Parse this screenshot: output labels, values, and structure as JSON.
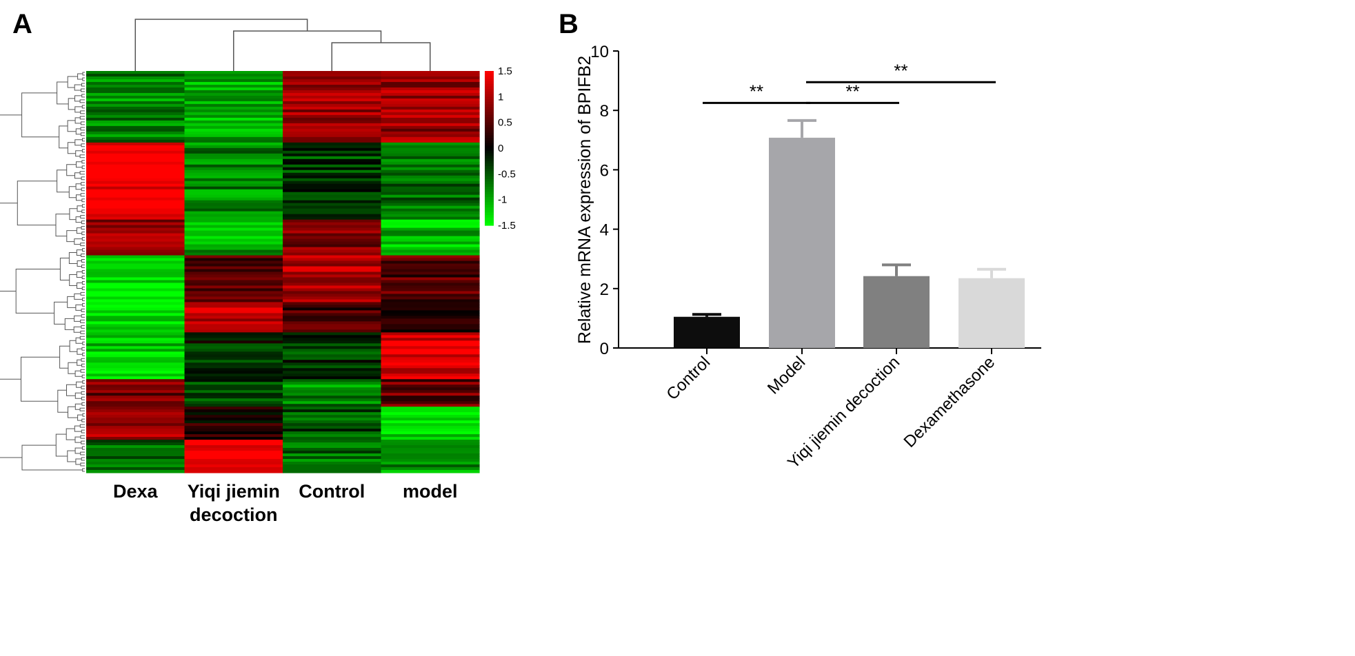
{
  "panels": {
    "a_label": "A",
    "b_label": "B"
  },
  "chart_data": [
    {
      "type": "heatmap",
      "panel": "A",
      "columns": [
        "Dexa",
        "Yiqi jiemin decoction",
        "Control",
        "model"
      ],
      "column_label_lines": [
        [
          "Dexa"
        ],
        [
          "Yiqi jiemin",
          "decoction"
        ],
        [
          "Control"
        ],
        [
          "model"
        ]
      ],
      "colorscale": {
        "min": -1.5,
        "max": 1.5,
        "low_color": "#00ff00",
        "mid_color": "#000000",
        "high_color": "#ff0000"
      },
      "colorbar_ticks": [
        "1.5",
        "1",
        "0.5",
        "0",
        "-0.5",
        "-1",
        "-1.5"
      ],
      "clusters": [
        {
          "rows": 26,
          "values": [
            -0.8,
            -1.0,
            0.9,
            0.9
          ]
        },
        {
          "rows": 28,
          "values": [
            1.5,
            -0.8,
            -0.4,
            -0.6
          ]
        },
        {
          "rows": 13,
          "values": [
            0.9,
            -1.0,
            0.7,
            -1.1
          ]
        },
        {
          "rows": 17,
          "values": [
            -1.4,
            0.4,
            1.0,
            0.5
          ]
        },
        {
          "rows": 11,
          "values": [
            -1.4,
            1.1,
            0.4,
            0.3
          ]
        },
        {
          "rows": 17,
          "values": [
            -1.2,
            -0.2,
            -0.3,
            1.3
          ]
        },
        {
          "rows": 10,
          "values": [
            0.7,
            -0.4,
            -0.8,
            0.6
          ]
        },
        {
          "rows": 12,
          "values": [
            1.0,
            0.2,
            -0.5,
            -1.2
          ]
        },
        {
          "rows": 12,
          "values": [
            -0.7,
            1.5,
            -0.6,
            -0.9
          ]
        }
      ]
    },
    {
      "type": "bar",
      "panel": "B",
      "categories": [
        "Control",
        "Model",
        "Yiqi jiemin decoction",
        "Dexamethasone"
      ],
      "values": [
        1.05,
        7.08,
        2.42,
        2.35
      ],
      "errors": [
        0.08,
        0.58,
        0.38,
        0.3
      ],
      "bar_colors": [
        "#0d0d0d",
        "#a6a6aa",
        "#808080",
        "#d9d9d9"
      ],
      "ylabel": "Relative mRNA expression of BPIFB2",
      "ylim": [
        0,
        10
      ],
      "yticks": [
        0,
        2,
        4,
        6,
        8,
        10
      ],
      "significance": [
        {
          "from": "Control",
          "to": "Model",
          "label": "**",
          "level": 8.25
        },
        {
          "from": "Model",
          "to": "Yiqi jiemin decoction",
          "label": "**",
          "level": 8.25
        },
        {
          "from": "Model",
          "to": "Dexamethasone",
          "label": "**",
          "level": 8.95
        }
      ]
    }
  ]
}
